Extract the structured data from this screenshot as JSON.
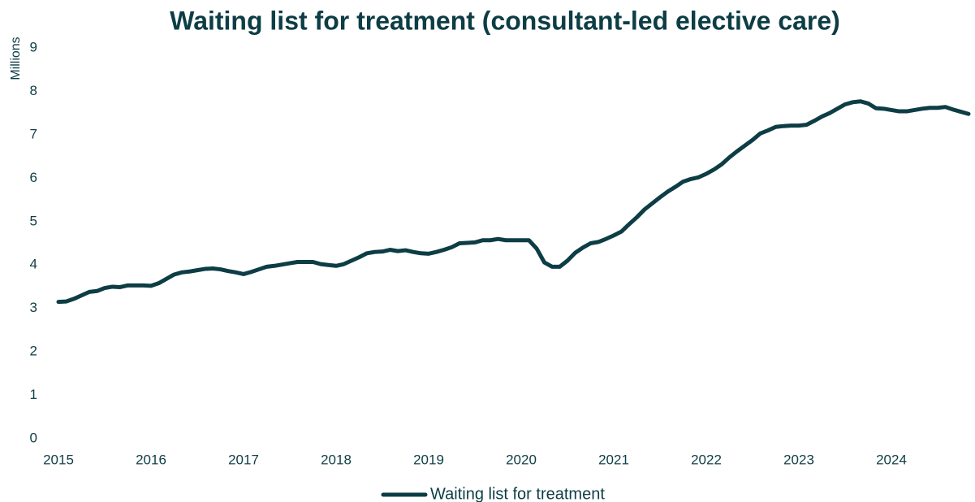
{
  "chart_data": {
    "type": "line",
    "title": "Waiting list for treatment (consultant-led elective care)",
    "y_label": "Millions",
    "categories": [
      "2015",
      null,
      null,
      null,
      null,
      null,
      null,
      null,
      null,
      null,
      null,
      null,
      "2016",
      null,
      null,
      null,
      null,
      null,
      null,
      null,
      null,
      null,
      null,
      null,
      "2017",
      null,
      null,
      null,
      null,
      null,
      null,
      null,
      null,
      null,
      null,
      null,
      "2018",
      null,
      null,
      null,
      null,
      null,
      null,
      null,
      null,
      null,
      null,
      null,
      "2019",
      null,
      null,
      null,
      null,
      null,
      null,
      null,
      null,
      null,
      null,
      null,
      "2020",
      null,
      null,
      null,
      null,
      null,
      null,
      null,
      null,
      null,
      null,
      null,
      "2021",
      null,
      null,
      null,
      null,
      null,
      null,
      null,
      null,
      null,
      null,
      null,
      "2022",
      null,
      null,
      null,
      null,
      null,
      null,
      null,
      null,
      null,
      null,
      null,
      "2023",
      null,
      null,
      null,
      null,
      null,
      null,
      null,
      null,
      null,
      null,
      null,
      "2024",
      null,
      null,
      null,
      null,
      null,
      null,
      null,
      null,
      null,
      null
    ],
    "series": [
      {
        "name": "Waiting list for treatment",
        "color": "#0d3d45",
        "values": [
          3.15,
          3.16,
          3.22,
          3.3,
          3.38,
          3.4,
          3.47,
          3.5,
          3.49,
          3.53,
          3.53,
          3.53,
          3.52,
          3.58,
          3.68,
          3.78,
          3.83,
          3.85,
          3.88,
          3.91,
          3.92,
          3.9,
          3.86,
          3.83,
          3.79,
          3.84,
          3.9,
          3.96,
          3.98,
          4.01,
          4.04,
          4.07,
          4.07,
          4.07,
          4.02,
          4.0,
          3.98,
          4.02,
          4.1,
          4.18,
          4.27,
          4.3,
          4.31,
          4.35,
          4.32,
          4.34,
          4.3,
          4.27,
          4.26,
          4.3,
          4.35,
          4.41,
          4.5,
          4.51,
          4.52,
          4.57,
          4.57,
          4.6,
          4.57,
          4.57,
          4.57,
          4.57,
          4.38,
          4.06,
          3.96,
          3.96,
          4.1,
          4.28,
          4.4,
          4.5,
          4.53,
          4.6,
          4.68,
          4.77,
          4.94,
          5.1,
          5.28,
          5.42,
          5.56,
          5.69,
          5.8,
          5.92,
          5.98,
          6.02,
          6.1,
          6.2,
          6.32,
          6.48,
          6.62,
          6.75,
          6.88,
          7.03,
          7.1,
          7.18,
          7.2,
          7.21,
          7.21,
          7.23,
          7.32,
          7.42,
          7.5,
          7.6,
          7.7,
          7.75,
          7.77,
          7.72,
          7.61,
          7.6,
          7.57,
          7.54,
          7.54,
          7.57,
          7.6,
          7.62,
          7.62,
          7.64,
          7.58,
          7.53,
          7.48
        ]
      }
    ],
    "ylim": [
      0,
      9
    ],
    "yticks": [
      0,
      1,
      2,
      3,
      4,
      5,
      6,
      7,
      8,
      9
    ],
    "grid": false,
    "legend": "bottom"
  }
}
